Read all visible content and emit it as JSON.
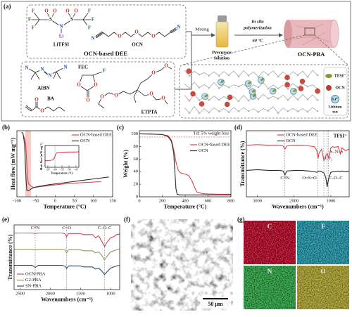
{
  "diagram": {
    "label": "(a)",
    "dee_box_title": "OCN-based DEE",
    "litfsi": "LiTFSI",
    "litfsi_atoms": [
      "F",
      "F",
      "F",
      "O",
      "O",
      "N",
      "O",
      "O",
      "F",
      "F",
      "F",
      "S",
      "S",
      "Li"
    ],
    "ocn": "OCN",
    "ocn_atoms": [
      "N",
      "O",
      "O",
      "O",
      "N"
    ],
    "aibn": "AIBN",
    "aibn_atoms": [
      "N",
      "N",
      "N",
      "N"
    ],
    "fec": "FEC",
    "fec_atoms": [
      "O",
      "O",
      "O",
      "F"
    ],
    "ba": "BA",
    "ba_atoms": [
      "O",
      "O"
    ],
    "etpta": "ETPTA",
    "etpta_atoms": [
      "O",
      "O",
      "O",
      "O",
      "O",
      "O"
    ],
    "mixing": "Mixing",
    "precursor": [
      "Precursor",
      "solution"
    ],
    "polymerization": [
      "In situ",
      "polymerization"
    ],
    "temperature": "60 °C",
    "product": "OCN-PBA",
    "legend": {
      "tfsi": "TFSI⁻",
      "ocn": "OCN",
      "li": "Li⁺",
      "li_name": [
        "Lithium",
        "ion"
      ]
    }
  },
  "chart_data": [
    {
      "type": "line",
      "label": "(b)",
      "xlabel": "Temperature (°C)",
      "ylabel": "Heat flow (mW mg⁻¹)",
      "xlim": [
        -100,
        150
      ],
      "xticks": [
        -100,
        -50,
        0,
        50,
        100,
        150
      ],
      "ylim": [
        0,
        10
      ],
      "shaded_span": [
        -78,
        -63
      ],
      "shaded_color": "#f6c9c6",
      "legend": "upper right",
      "series": [
        {
          "name": "OCN-based DEE",
          "color": "#d9454f",
          "x": [
            -83,
            -80,
            -77,
            -75,
            -73,
            -70,
            -65,
            -60,
            -55,
            -50,
            -30,
            0,
            30,
            60,
            90,
            120
          ],
          "values": [
            9.2,
            8.9,
            8,
            6,
            3.5,
            2,
            1.7,
            1.5,
            1.4,
            1.45,
            1.6,
            1.8,
            2,
            2.1,
            2.2,
            2.3
          ]
        },
        {
          "name": "OCN",
          "color": "#2b2b2b",
          "x": [
            -88,
            -84,
            -80,
            -78,
            -76,
            -74,
            -70,
            -65,
            -60,
            -50,
            -20,
            20,
            60,
            100,
            140
          ],
          "values": [
            9.8,
            9.6,
            8,
            5,
            2.5,
            1,
            0.9,
            1.1,
            1.3,
            1.5,
            1.8,
            2.1,
            2.4,
            2.7,
            3
          ]
        }
      ]
    },
    {
      "type": "line",
      "xlabel": "Temperature (°C)",
      "ylabel": "Heat flow (mW mg⁻¹)",
      "xlim": [
        -67,
        -43
      ],
      "xticks": [
        -65,
        -60,
        -55,
        -50,
        -45
      ],
      "ylim": [
        0,
        10
      ],
      "vline": -60,
      "series": [
        {
          "color": "#d9454f",
          "x": [
            -67,
            -64,
            -62,
            -61,
            -60,
            -59,
            -57,
            -54,
            -50,
            -46,
            -43
          ],
          "values": [
            3,
            3.1,
            3.3,
            3.6,
            5,
            6.5,
            6.8,
            6.9,
            7,
            7,
            7.1
          ]
        }
      ]
    },
    {
      "type": "line",
      "label": "(c)",
      "xlabel": "Temperature (°C)",
      "ylabel": "Weight (%)",
      "xlim": [
        0,
        800
      ],
      "xticks": [
        0,
        200,
        400,
        600,
        800
      ],
      "ylim": [
        0,
        105
      ],
      "yticks": [
        0,
        20,
        40,
        60,
        80,
        100
      ],
      "hline": {
        "value": 95,
        "text": "Td: 5% weight loss"
      },
      "legend": "upper right",
      "series": [
        {
          "name": "OCN-based DEE",
          "color": "#d9454f",
          "x": [
            0,
            100,
            200,
            250,
            280,
            300,
            320,
            340,
            360,
            400,
            430,
            460,
            500,
            550,
            600,
            700,
            800
          ],
          "values": [
            100,
            99.8,
            99,
            97,
            90,
            75,
            55,
            42,
            38,
            36,
            34,
            25,
            8,
            5,
            4.5,
            4,
            4
          ]
        },
        {
          "name": "OCN",
          "color": "#2b2b2b",
          "x": [
            0,
            100,
            200,
            250,
            280,
            300,
            310,
            320,
            330,
            350,
            400,
            600,
            800
          ],
          "values": [
            100,
            99.8,
            99,
            96,
            88,
            70,
            40,
            12,
            4,
            3,
            3,
            3,
            3
          ]
        }
      ]
    },
    {
      "type": "line",
      "label": "(d)",
      "xlabel": "Wavenumbers (cm⁻¹)",
      "ylabel": "Transmittance (%)",
      "xlim": [
        3300,
        500
      ],
      "xticks": [
        3000,
        2000,
        1000
      ],
      "ylim": [
        0,
        100
      ],
      "note": "TFSI⁻",
      "legend": "upper center",
      "annotations": [
        {
          "text": "C≡N",
          "x": 2250
        },
        {
          "text": "O=S=O",
          "x": 1350
        },
        {
          "text": "CF₃",
          "x": 1190
        },
        {
          "text": "S–N–S",
          "x": 1060
        },
        {
          "text": "C–O–C",
          "x": 1100
        }
      ],
      "series": [
        {
          "name": "OCN-based DEE",
          "color": "#d9454f",
          "x": [
            3300,
            3000,
            2700,
            2400,
            2300,
            2250,
            2200,
            2000,
            1800,
            1600,
            1450,
            1380,
            1350,
            1320,
            1250,
            1190,
            1140,
            1100,
            1060,
            1000,
            950,
            900,
            800,
            740,
            700,
            600,
            500
          ],
          "values": [
            78,
            79,
            78,
            78,
            77,
            72,
            77,
            78,
            78,
            77,
            76,
            70,
            58,
            66,
            72,
            55,
            62,
            66,
            58,
            74,
            76,
            75,
            76,
            65,
            74,
            70,
            72
          ]
        },
        {
          "name": "OCN",
          "color": "#2b2b2b",
          "x": [
            3300,
            3000,
            2700,
            2400,
            2300,
            2250,
            2200,
            2000,
            1800,
            1600,
            1450,
            1380,
            1350,
            1320,
            1250,
            1190,
            1140,
            1100,
            1060,
            1000,
            950,
            900,
            800,
            740,
            700,
            600,
            500
          ],
          "values": [
            40,
            41,
            40,
            40,
            39,
            33,
            39,
            40,
            40,
            39,
            38,
            37,
            38,
            39,
            38,
            36,
            30,
            15,
            28,
            37,
            38,
            38,
            39,
            38,
            39,
            38,
            39
          ]
        }
      ]
    },
    {
      "type": "line",
      "label": "(e)",
      "xlabel": "Wavenumbers (cm⁻¹)",
      "ylabel": "Transmittance (%)",
      "xlim": [
        2600,
        850
      ],
      "xticks": [
        2500,
        2000,
        1500,
        1000
      ],
      "ylim": [
        -20,
        100
      ],
      "legend": "lower left",
      "annotations": [
        {
          "text": "C≡N",
          "x": 2250
        },
        {
          "text": "C=O",
          "x": 1730
        },
        {
          "text": "C–O–C",
          "x": 1100
        }
      ],
      "series": [
        {
          "name": "OCN-PBA",
          "color": "#d9454f",
          "x": [
            2600,
            2400,
            2300,
            2250,
            2200,
            2000,
            1800,
            1750,
            1730,
            1700,
            1500,
            1450,
            1300,
            1250,
            1200,
            1150,
            1100,
            1060,
            1000,
            950,
            900,
            850
          ],
          "values": [
            85,
            85,
            85,
            84,
            85,
            85,
            85,
            83,
            78,
            84,
            84,
            82,
            82,
            76,
            80,
            70,
            60,
            68,
            76,
            78,
            82,
            83
          ]
        },
        {
          "name": "G2-PBA",
          "color": "#8a9a5b",
          "x": [
            2600,
            2400,
            2300,
            2250,
            2200,
            2000,
            1800,
            1750,
            1730,
            1700,
            1500,
            1450,
            1300,
            1250,
            1200,
            1150,
            1100,
            1060,
            1000,
            950,
            900,
            850
          ],
          "values": [
            55,
            55,
            55,
            54,
            55,
            55,
            55,
            53,
            48,
            54,
            54,
            52,
            52,
            48,
            50,
            44,
            35,
            42,
            50,
            52,
            54,
            55
          ]
        },
        {
          "name": "SN-PBA",
          "color": "#2f4f6f",
          "x": [
            2600,
            2400,
            2300,
            2250,
            2200,
            2000,
            1800,
            1750,
            1730,
            1700,
            1500,
            1450,
            1300,
            1250,
            1200,
            1150,
            1100,
            1060,
            1000,
            950,
            900,
            850
          ],
          "values": [
            25,
            25,
            25,
            21,
            25,
            25,
            25,
            23,
            19,
            24,
            24,
            22,
            22,
            18,
            20,
            15,
            8,
            13,
            20,
            22,
            24,
            25
          ]
        }
      ]
    }
  ],
  "sem": {
    "label": "(f)",
    "scale_bar": "50 μm"
  },
  "eds": {
    "label": "(g)",
    "elements": [
      "C",
      "F",
      "N",
      "O"
    ],
    "colors": [
      "#c0303c",
      "#3a90a8",
      "#3fa04a",
      "#b0a040"
    ]
  }
}
